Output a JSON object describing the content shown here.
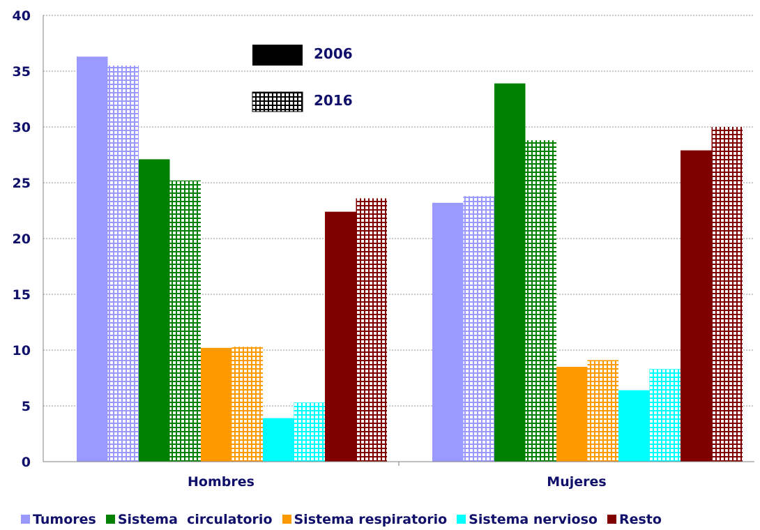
{
  "chart_data": {
    "type": "bar",
    "categories": [
      "Hombres",
      "Mujeres"
    ],
    "years": [
      "2006",
      "2016"
    ],
    "ylim": [
      0,
      40
    ],
    "yticks": [
      0,
      5,
      10,
      15,
      20,
      25,
      30,
      35,
      40
    ],
    "grid": true,
    "legend_position": "bottom",
    "series": [
      {
        "name": "Tumores",
        "color": "#9999ff",
        "values_2006": [
          36.3,
          23.2
        ],
        "values_2016": [
          35.5,
          23.8
        ]
      },
      {
        "name": "Sistema  circulatorio",
        "color": "#008000",
        "values_2006": [
          27.1,
          33.9
        ],
        "values_2016": [
          25.2,
          28.8
        ]
      },
      {
        "name": "Sistema respiratorio",
        "color": "#ff9900",
        "values_2006": [
          10.2,
          8.5
        ],
        "values_2016": [
          10.3,
          9.1
        ]
      },
      {
        "name": "Sistema nervioso",
        "color": "#00ffff",
        "values_2006": [
          3.9,
          6.4
        ],
        "values_2016": [
          5.3,
          8.3
        ]
      },
      {
        "name": "Resto",
        "color": "#800000",
        "values_2006": [
          22.4,
          27.9
        ],
        "values_2016": [
          23.6,
          30.0
        ]
      }
    ]
  }
}
